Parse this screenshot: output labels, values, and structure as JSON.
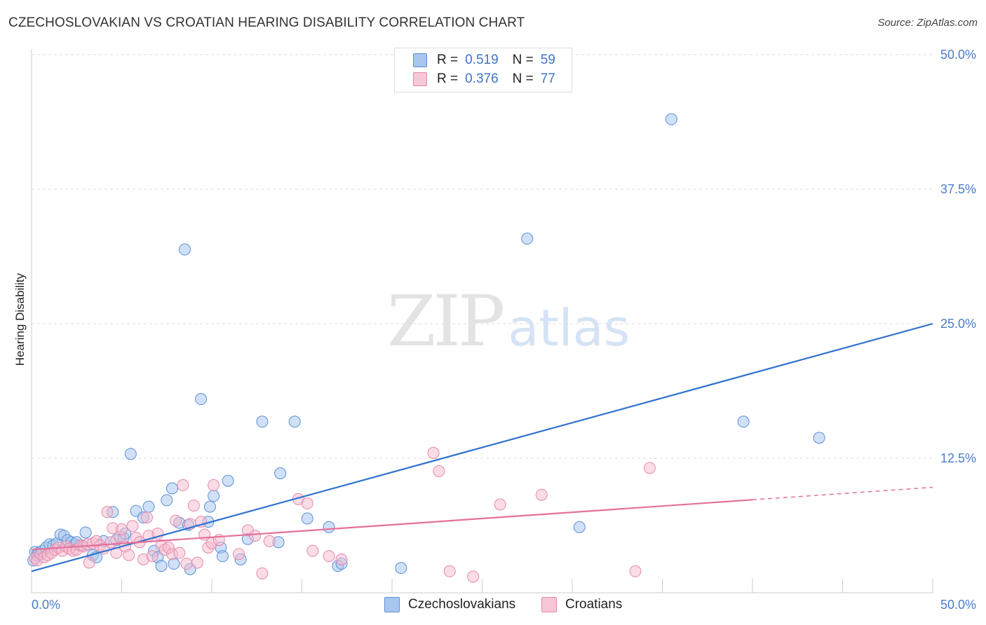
{
  "header": {
    "title": "CZECHOSLOVAKIAN VS CROATIAN HEARING DISABILITY CORRELATION CHART",
    "source": "Source: ZipAtlas.com"
  },
  "watermark": {
    "zip": "ZIP",
    "atlas": "atlas"
  },
  "legend_top": {
    "series": [
      {
        "r_label": "R =",
        "r_value": "0.519",
        "n_label": "N =",
        "n_value": "59"
      },
      {
        "r_label": "R =",
        "r_value": "0.376",
        "n_label": "N =",
        "n_value": "77"
      }
    ]
  },
  "legend_bottom": {
    "items": [
      {
        "label": "Czechoslovakians"
      },
      {
        "label": "Croatians"
      }
    ]
  },
  "colors": {
    "blue_fill": "#a9c6ef",
    "blue_stroke": "#5b8fd6",
    "blue_line": "#2f72cf",
    "pink_fill": "#f6b9cd",
    "pink_stroke": "#e58aab",
    "pink_line": "#e3709a",
    "grid": "#dddddd",
    "tick_label": "#4a7cc9"
  },
  "chart_data": {
    "type": "scatter",
    "title": "CZECHOSLOVAKIAN VS CROATIAN HEARING DISABILITY CORRELATION CHART",
    "xlabel": "",
    "ylabel": "Hearing Disability",
    "xlim": [
      0,
      50
    ],
    "ylim": [
      0,
      50
    ],
    "x_tick_labels": [
      "0.0%",
      "50.0%"
    ],
    "y_ticks": [
      12.5,
      25.0,
      37.5,
      50.0
    ],
    "y_tick_labels": [
      "12.5%",
      "25.0%",
      "37.5%",
      "50.0%"
    ],
    "grid": true,
    "legend_position": "top-center",
    "series": [
      {
        "name": "Czechoslovakians",
        "r": 0.519,
        "n": 59,
        "trend": {
          "x": [
            0,
            50
          ],
          "y": [
            2.0,
            25.0
          ],
          "dashed_from": null
        },
        "points": [
          [
            0.1,
            3.0
          ],
          [
            0.2,
            3.8
          ],
          [
            0.3,
            3.5
          ],
          [
            0.4,
            3.7
          ],
          [
            0.5,
            3.6
          ],
          [
            0.6,
            3.9
          ],
          [
            0.8,
            4.2
          ],
          [
            1.0,
            4.5
          ],
          [
            1.2,
            4.4
          ],
          [
            1.4,
            4.6
          ],
          [
            1.6,
            5.4
          ],
          [
            1.8,
            5.3
          ],
          [
            2.0,
            4.9
          ],
          [
            2.2,
            4.7
          ],
          [
            2.4,
            4.5
          ],
          [
            2.5,
            4.7
          ],
          [
            2.8,
            4.4
          ],
          [
            3.0,
            5.6
          ],
          [
            3.4,
            3.5
          ],
          [
            3.6,
            3.3
          ],
          [
            4.0,
            4.8
          ],
          [
            4.5,
            7.5
          ],
          [
            4.7,
            4.9
          ],
          [
            5.1,
            5.1
          ],
          [
            5.2,
            5.5
          ],
          [
            5.5,
            12.9
          ],
          [
            5.8,
            7.6
          ],
          [
            6.2,
            7.0
          ],
          [
            6.5,
            8.0
          ],
          [
            6.8,
            3.9
          ],
          [
            7.0,
            3.3
          ],
          [
            7.2,
            2.5
          ],
          [
            7.5,
            8.6
          ],
          [
            7.8,
            9.7
          ],
          [
            7.9,
            2.7
          ],
          [
            8.2,
            6.5
          ],
          [
            8.5,
            31.9
          ],
          [
            8.7,
            6.3
          ],
          [
            8.8,
            2.2
          ],
          [
            9.4,
            18.0
          ],
          [
            9.8,
            6.6
          ],
          [
            9.9,
            8.0
          ],
          [
            10.1,
            9.0
          ],
          [
            10.5,
            4.2
          ],
          [
            10.6,
            3.4
          ],
          [
            10.9,
            10.4
          ],
          [
            11.6,
            3.1
          ],
          [
            12.0,
            5.0
          ],
          [
            12.8,
            15.9
          ],
          [
            13.7,
            4.7
          ],
          [
            13.8,
            11.1
          ],
          [
            14.6,
            15.9
          ],
          [
            15.3,
            6.9
          ],
          [
            16.5,
            6.1
          ],
          [
            17.0,
            2.5
          ],
          [
            17.2,
            2.7
          ],
          [
            20.5,
            2.3
          ],
          [
            27.5,
            32.9
          ],
          [
            30.4,
            6.1
          ],
          [
            35.5,
            44.0
          ],
          [
            39.5,
            15.9
          ],
          [
            43.7,
            14.4
          ]
        ]
      },
      {
        "name": "Croatians",
        "r": 0.376,
        "n": 77,
        "trend": {
          "x": [
            0,
            50
          ],
          "y": [
            4.0,
            9.8
          ],
          "dashed_from": 40.0
        },
        "points": [
          [
            0.2,
            3.2
          ],
          [
            0.3,
            3.0
          ],
          [
            0.5,
            3.6
          ],
          [
            0.7,
            3.3
          ],
          [
            0.9,
            3.5
          ],
          [
            1.1,
            3.7
          ],
          [
            1.3,
            4.0
          ],
          [
            1.5,
            4.2
          ],
          [
            1.7,
            3.9
          ],
          [
            1.9,
            4.3
          ],
          [
            2.1,
            4.1
          ],
          [
            2.3,
            3.9
          ],
          [
            2.5,
            4.0
          ],
          [
            2.7,
            4.4
          ],
          [
            2.9,
            4.3
          ],
          [
            3.1,
            4.5
          ],
          [
            3.2,
            2.8
          ],
          [
            3.4,
            4.6
          ],
          [
            3.6,
            4.8
          ],
          [
            3.8,
            4.4
          ],
          [
            4.0,
            4.1
          ],
          [
            4.2,
            7.5
          ],
          [
            4.4,
            4.7
          ],
          [
            4.5,
            6.0
          ],
          [
            4.7,
            3.7
          ],
          [
            4.9,
            5.2
          ],
          [
            5.0,
            5.9
          ],
          [
            5.2,
            4.3
          ],
          [
            5.4,
            3.5
          ],
          [
            5.6,
            6.2
          ],
          [
            5.8,
            5.1
          ],
          [
            6.0,
            4.7
          ],
          [
            6.2,
            3.1
          ],
          [
            6.4,
            7.0
          ],
          [
            6.5,
            5.3
          ],
          [
            6.7,
            3.4
          ],
          [
            7.0,
            5.5
          ],
          [
            7.2,
            4.4
          ],
          [
            7.4,
            4.0
          ],
          [
            7.6,
            4.2
          ],
          [
            7.8,
            3.6
          ],
          [
            8.0,
            6.7
          ],
          [
            8.2,
            3.7
          ],
          [
            8.4,
            10.0
          ],
          [
            8.6,
            2.7
          ],
          [
            8.8,
            6.4
          ],
          [
            9.0,
            8.1
          ],
          [
            9.2,
            2.8
          ],
          [
            9.4,
            6.6
          ],
          [
            9.6,
            5.4
          ],
          [
            9.8,
            4.2
          ],
          [
            10.0,
            4.6
          ],
          [
            10.1,
            10.0
          ],
          [
            10.4,
            4.9
          ],
          [
            11.5,
            3.6
          ],
          [
            12.0,
            5.8
          ],
          [
            12.4,
            5.3
          ],
          [
            12.8,
            1.8
          ],
          [
            13.2,
            4.8
          ],
          [
            14.8,
            8.7
          ],
          [
            15.3,
            8.3
          ],
          [
            15.6,
            3.9
          ],
          [
            16.5,
            3.4
          ],
          [
            17.2,
            3.1
          ],
          [
            22.3,
            13.0
          ],
          [
            22.6,
            11.3
          ],
          [
            23.2,
            2.0
          ],
          [
            24.5,
            1.5
          ],
          [
            26.0,
            8.2
          ],
          [
            28.3,
            9.1
          ],
          [
            33.5,
            2.0
          ],
          [
            34.3,
            11.6
          ]
        ]
      }
    ]
  }
}
